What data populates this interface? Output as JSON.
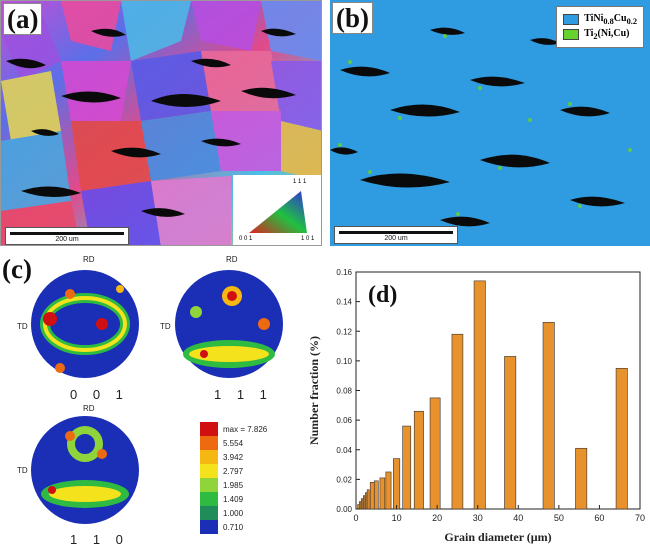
{
  "figure": {
    "panel_labels": {
      "a": "(a)",
      "b": "(b)",
      "c": "(c)",
      "d": "(d)"
    }
  },
  "panel_a": {
    "scale_bar": "200 um",
    "ipf_key": {
      "top": "1 1 1",
      "left": "0 0 1",
      "right": "1 0 1"
    }
  },
  "panel_b": {
    "scale_bar": "200 um",
    "legend": [
      {
        "label": "TiNi0.8Cu0.2",
        "color": "#2f9be0"
      },
      {
        "label": "Ti2(Ni,Cu)",
        "color": "#66d22e"
      }
    ]
  },
  "panel_c": {
    "pole_figures": [
      {
        "name": "0 0 1",
        "rd": "RD",
        "td": "TD"
      },
      {
        "name": "1 1 1",
        "rd": "RD",
        "td": "TD"
      },
      {
        "name": "1 1 0",
        "rd": "RD",
        "td": "TD"
      }
    ],
    "colorbar": [
      {
        "label": "max = 7.826",
        "color": "#d01010"
      },
      {
        "label": "5.554",
        "color": "#ee6a10"
      },
      {
        "label": "3.942",
        "color": "#f5b812"
      },
      {
        "label": "2.797",
        "color": "#f4e21c"
      },
      {
        "label": "1.985",
        "color": "#8ed43a"
      },
      {
        "label": "1.409",
        "color": "#2fbb42"
      },
      {
        "label": "1.000",
        "color": "#1f8c5a"
      },
      {
        "label": "0.710",
        "color": "#1a2fb5"
      }
    ]
  },
  "chart_data": {
    "type": "bar",
    "xlabel": "Grain diameter (μm)",
    "ylabel": "Number fraction (%)",
    "xlim": [
      0,
      70
    ],
    "ylim": [
      0,
      0.16
    ],
    "xticks": [
      0,
      10,
      20,
      30,
      40,
      50,
      60,
      70
    ],
    "yticks": [
      0.0,
      0.02,
      0.04,
      0.06,
      0.08,
      0.1,
      0.12,
      0.14,
      0.16
    ],
    "ytick_labels": [
      "0.00",
      "0.02",
      "0.04",
      "0.06",
      "0.08",
      "0.10",
      "0.12",
      "0.14",
      "0.16"
    ],
    "bar_color": "#e8922e",
    "x": [
      0.6,
      1.0,
      1.5,
      2.0,
      2.5,
      3.0,
      4.0,
      5.0,
      6.5,
      8.0,
      10.0,
      12.5,
      15.5,
      19.5,
      25.0,
      30.5,
      38.0,
      47.5,
      55.5,
      65.5
    ],
    "values": [
      0.003,
      0.005,
      0.007,
      0.009,
      0.011,
      0.013,
      0.018,
      0.019,
      0.021,
      0.025,
      0.034,
      0.056,
      0.066,
      0.075,
      0.118,
      0.154,
      0.103,
      0.126,
      0.041,
      0.095
    ],
    "widths": [
      0.4,
      0.4,
      0.4,
      0.4,
      0.4,
      0.5,
      1.0,
      1.0,
      1.2,
      1.3,
      1.6,
      2.0,
      2.3,
      2.5,
      2.7,
      2.8,
      2.8,
      2.8,
      2.8,
      2.8
    ]
  }
}
